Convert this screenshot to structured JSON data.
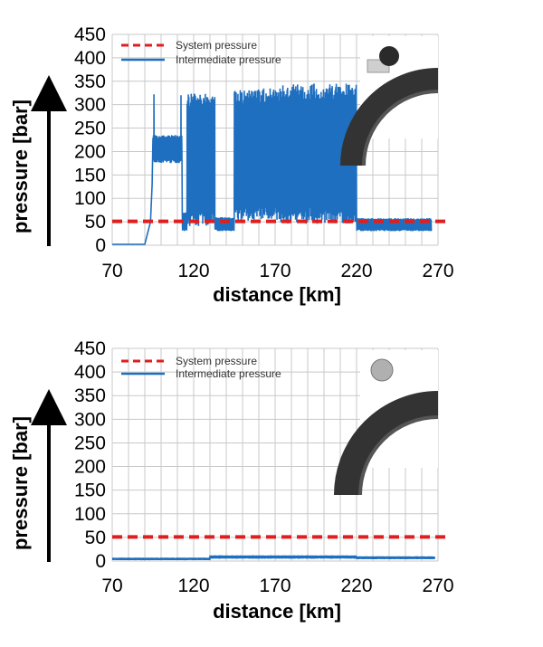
{
  "colors": {
    "system": "#e01e1e",
    "intermediate": "#1f6fc0",
    "grid": "#c8c8c8",
    "axis": "#000000",
    "seal_dark": "#333333",
    "seal_light": "#cfcfcf"
  },
  "chart_data": [
    {
      "type": "line",
      "ylabel": "pressure [bar]",
      "xlabel": "distance [km]",
      "x_ticks": [
        70,
        120,
        170,
        220,
        270
      ],
      "y_ticks": [
        0,
        50,
        100,
        150,
        200,
        250,
        300,
        350,
        400,
        450
      ],
      "xlim": [
        70,
        270
      ],
      "ylim": [
        0,
        450
      ],
      "legend": {
        "placement": "top-left",
        "entries": [
          "System pressure",
          "Intermediate pressure"
        ]
      },
      "inset": "seal-cross-section-with-backup-ring",
      "series": [
        {
          "name": "System pressure",
          "style": "dashed",
          "x": [
            70,
            270
          ],
          "y": [
            51,
            51
          ]
        },
        {
          "name": "Intermediate pressure",
          "style": "solid",
          "segments": [
            {
              "x0": 70,
              "x1": 90,
              "kind": "flat",
              "base": 2
            },
            {
              "x0": 90,
              "x1": 95,
              "kind": "ramp",
              "from": 2,
              "to": 50
            },
            {
              "x0": 95,
              "x1": 113,
              "kind": "band",
              "lo": 175,
              "hi": 235,
              "spikes": [
                322,
                320
              ]
            },
            {
              "x0": 113,
              "x1": 116,
              "kind": "band",
              "lo": 30,
              "hi": 70
            },
            {
              "x0": 116,
              "x1": 133,
              "kind": "band",
              "lo": 40,
              "hi": 325
            },
            {
              "x0": 133,
              "x1": 145,
              "kind": "band",
              "lo": 30,
              "hi": 60
            },
            {
              "x0": 145,
              "x1": 173,
              "kind": "band",
              "lo": 50,
              "hi": 335
            },
            {
              "x0": 173,
              "x1": 220,
              "kind": "band",
              "lo": 45,
              "hi": 345
            },
            {
              "x0": 220,
              "x1": 266,
              "kind": "band",
              "lo": 30,
              "hi": 58
            }
          ]
        }
      ]
    },
    {
      "type": "line",
      "ylabel": "pressure [bar]",
      "xlabel": "distance [km]",
      "x_ticks": [
        70,
        120,
        170,
        220,
        270
      ],
      "y_ticks": [
        0,
        50,
        100,
        150,
        200,
        250,
        300,
        350,
        400,
        450
      ],
      "xlim": [
        70,
        270
      ],
      "ylim": [
        0,
        450
      ],
      "legend": {
        "placement": "top-left",
        "entries": [
          "System pressure",
          "Intermediate pressure"
        ]
      },
      "inset": "seal-cross-section-o-ring",
      "series": [
        {
          "name": "System pressure",
          "style": "dashed",
          "x": [
            70,
            270
          ],
          "y": [
            51,
            51
          ]
        },
        {
          "name": "Intermediate pressure",
          "style": "solid",
          "segments": [
            {
              "x0": 70,
              "x1": 130,
              "kind": "band",
              "lo": 2,
              "hi": 7
            },
            {
              "x0": 130,
              "x1": 220,
              "kind": "band",
              "lo": 5,
              "hi": 12
            },
            {
              "x0": 220,
              "x1": 268,
              "kind": "band",
              "lo": 4,
              "hi": 10
            }
          ]
        }
      ]
    }
  ]
}
